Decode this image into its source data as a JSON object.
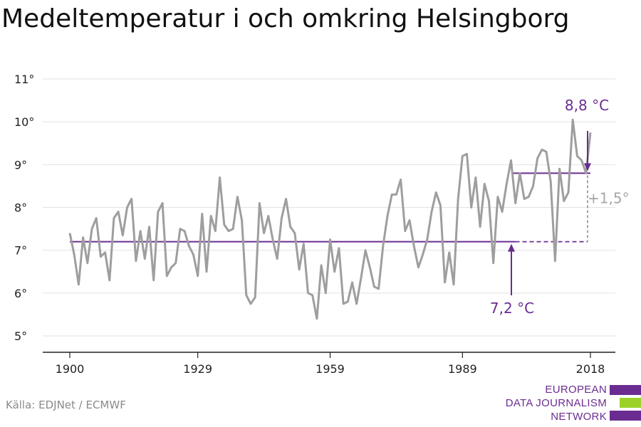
{
  "title": "Medeltemperatur i och omkring Helsingborg",
  "source": "Källa: EDJNet / ECMWF",
  "logo": {
    "lines": [
      "EUROPEAN",
      "DATA JOURNALISM",
      "NETWORK"
    ]
  },
  "colors": {
    "series": "#9e9e9e",
    "accent": "#6b2c91",
    "delta": "#a6a6a6",
    "logo_green": "#9ad228"
  },
  "chart_data": {
    "type": "line",
    "title": "Medeltemperatur i och omkring Helsingborg",
    "xlabel": "",
    "ylabel": "",
    "xlim": [
      1900,
      2018
    ],
    "ylim": [
      5,
      11
    ],
    "x_ticks": [
      1900,
      1929,
      1959,
      1989,
      2018
    ],
    "x_tick_labels": [
      "1900",
      "1929",
      "1959",
      "1989",
      "2018"
    ],
    "y_ticks": [
      5,
      6,
      7,
      8,
      9,
      10,
      11
    ],
    "y_tick_labels": [
      "5°",
      "6°",
      "7°",
      "8°",
      "9°",
      "10°",
      "11°"
    ],
    "grid": true,
    "series": [
      {
        "x": [
          1900,
          1901,
          1902,
          1903,
          1904,
          1905,
          1906,
          1907,
          1908,
          1909,
          1910,
          1911,
          1912,
          1913,
          1914,
          1915,
          1916,
          1917,
          1918,
          1919,
          1920,
          1921,
          1922,
          1923,
          1924,
          1925,
          1926,
          1927,
          1928,
          1929,
          1930,
          1931,
          1932,
          1933,
          1934,
          1935,
          1936,
          1937,
          1938,
          1939,
          1940,
          1941,
          1942,
          1943,
          1944,
          1945,
          1946,
          1947,
          1948,
          1949,
          1950,
          1951,
          1952,
          1953,
          1954,
          1955,
          1956,
          1957,
          1958,
          1959,
          1960,
          1961,
          1962,
          1963,
          1964,
          1965,
          1966,
          1967,
          1968,
          1969,
          1970,
          1971,
          1972,
          1973,
          1974,
          1975,
          1976,
          1977,
          1978,
          1979,
          1980,
          1981,
          1982,
          1983,
          1984,
          1985,
          1986,
          1987,
          1988,
          1989,
          1990,
          1991,
          1992,
          1993,
          1994,
          1995,
          1996,
          1997,
          1998,
          1999,
          2000,
          2001,
          2002,
          2003,
          2004,
          2005,
          2006,
          2007,
          2008,
          2009,
          2010,
          2011,
          2012,
          2013,
          2014,
          2015,
          2016,
          2017,
          2018
        ],
        "values": [
          7.4,
          6.9,
          6.2,
          7.3,
          6.7,
          7.5,
          7.75,
          6.85,
          6.95,
          6.3,
          7.75,
          7.9,
          7.35,
          8.0,
          8.2,
          6.75,
          7.45,
          6.8,
          7.55,
          6.3,
          7.9,
          8.1,
          6.4,
          6.6,
          6.7,
          7.5,
          7.45,
          7.1,
          6.9,
          6.4,
          7.85,
          6.5,
          7.8,
          7.45,
          8.7,
          7.6,
          7.45,
          7.5,
          8.25,
          7.7,
          5.95,
          5.75,
          5.9,
          8.1,
          7.4,
          7.8,
          7.25,
          6.8,
          7.75,
          8.2,
          7.55,
          7.4,
          6.55,
          7.15,
          6.0,
          5.95,
          5.4,
          6.65,
          6.0,
          7.25,
          6.5,
          7.05,
          5.75,
          5.8,
          6.25,
          5.75,
          6.35,
          7.0,
          6.6,
          6.15,
          6.1,
          7.1,
          7.8,
          8.3,
          8.3,
          8.65,
          7.45,
          7.7,
          7.1,
          6.6,
          6.9,
          7.25,
          7.9,
          8.35,
          8.05,
          6.25,
          6.95,
          6.2,
          8.2,
          9.2,
          9.25,
          8.0,
          8.7,
          7.55,
          8.55,
          8.15,
          6.7,
          8.25,
          7.9,
          8.55,
          9.1,
          8.1,
          8.8,
          8.2,
          8.25,
          8.5,
          9.15,
          9.35,
          9.3,
          8.6,
          6.75,
          8.9,
          8.15,
          8.35,
          10.05,
          9.2,
          9.1,
          8.8,
          9.75
        ]
      }
    ],
    "reference_lines": [
      {
        "value": 7.2,
        "from": 1900,
        "to": 2000,
        "label": "7,2 °C",
        "extended_to": 2018
      },
      {
        "value": 8.8,
        "from": 2000,
        "to": 2018,
        "label": "8,8 °C"
      }
    ],
    "delta_label": "+1,5°"
  }
}
